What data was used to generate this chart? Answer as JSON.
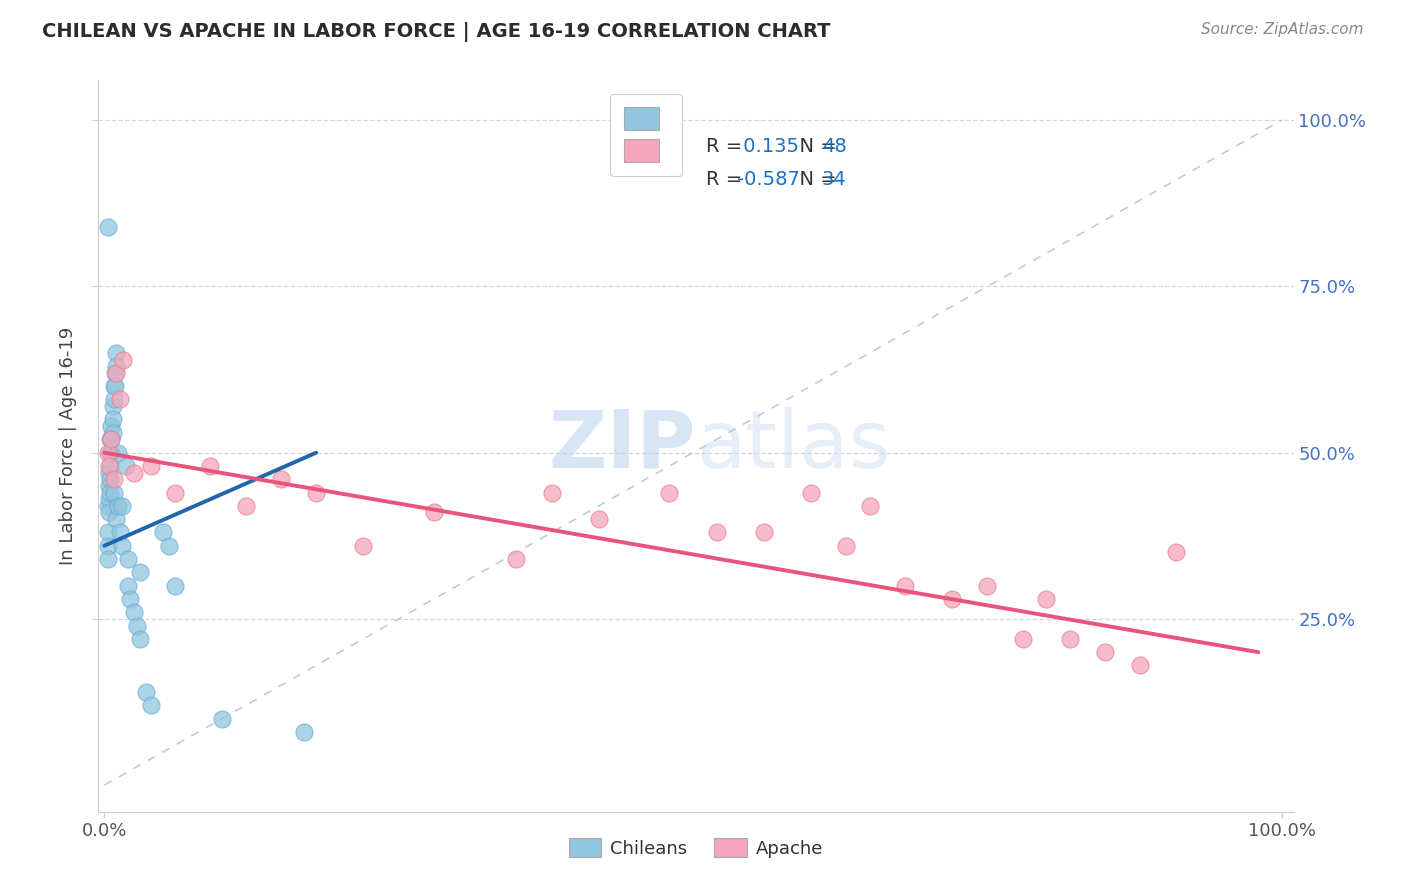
{
  "title": "CHILEAN VS APACHE IN LABOR FORCE | AGE 16-19 CORRELATION CHART",
  "source": "Source: ZipAtlas.com",
  "ylabel": "In Labor Force | Age 16-19",
  "chilean_R": 0.135,
  "chilean_N": 48,
  "apache_R": -0.587,
  "apache_N": 34,
  "chilean_color": "#92c5de",
  "apache_color": "#f4a6bd",
  "chilean_edge_color": "#6aaed6",
  "apache_edge_color": "#f08080",
  "chilean_line_color": "#2166ac",
  "apache_line_color": "#e8547a",
  "diagonal_color": "#b0c4d8",
  "watermark_color": "#ddeeff",
  "right_tick_color": "#4472c4",
  "legend_R_color": "#1a70c8",
  "legend_N_color": "#1a70c8",
  "title_color": "#2c2c2c",
  "source_color": "#888888",
  "grid_color": "#d0d8e4",
  "chilean_x": [
    0.003,
    0.003,
    0.003,
    0.003,
    0.003,
    0.004,
    0.004,
    0.004,
    0.004,
    0.005,
    0.005,
    0.005,
    0.005,
    0.005,
    0.006,
    0.006,
    0.006,
    0.007,
    0.007,
    0.007,
    0.008,
    0.008,
    0.008,
    0.009,
    0.009,
    0.01,
    0.01,
    0.01,
    0.012,
    0.012,
    0.013,
    0.015,
    0.015,
    0.018,
    0.02,
    0.02,
    0.022,
    0.025,
    0.028,
    0.03,
    0.03,
    0.035,
    0.04,
    0.05,
    0.055,
    0.06,
    0.1,
    0.17
  ],
  "chilean_y": [
    0.84,
    0.42,
    0.38,
    0.36,
    0.34,
    0.47,
    0.45,
    0.43,
    0.41,
    0.52,
    0.5,
    0.48,
    0.46,
    0.44,
    0.54,
    0.52,
    0.5,
    0.57,
    0.55,
    0.53,
    0.6,
    0.58,
    0.44,
    0.62,
    0.6,
    0.65,
    0.63,
    0.4,
    0.5,
    0.42,
    0.38,
    0.36,
    0.42,
    0.48,
    0.34,
    0.3,
    0.28,
    0.26,
    0.24,
    0.22,
    0.32,
    0.14,
    0.12,
    0.38,
    0.36,
    0.3,
    0.1,
    0.08
  ],
  "apache_x": [
    0.003,
    0.004,
    0.006,
    0.008,
    0.01,
    0.013,
    0.016,
    0.025,
    0.04,
    0.06,
    0.09,
    0.12,
    0.15,
    0.18,
    0.22,
    0.28,
    0.35,
    0.38,
    0.42,
    0.48,
    0.52,
    0.56,
    0.6,
    0.63,
    0.65,
    0.68,
    0.72,
    0.75,
    0.78,
    0.8,
    0.82,
    0.85,
    0.88,
    0.91
  ],
  "apache_y": [
    0.5,
    0.48,
    0.52,
    0.46,
    0.62,
    0.58,
    0.64,
    0.47,
    0.48,
    0.44,
    0.48,
    0.42,
    0.46,
    0.44,
    0.36,
    0.41,
    0.34,
    0.44,
    0.4,
    0.44,
    0.38,
    0.38,
    0.44,
    0.36,
    0.42,
    0.3,
    0.28,
    0.3,
    0.22,
    0.28,
    0.22,
    0.2,
    0.18,
    0.35
  ],
  "chilean_trend_x": [
    0.0,
    0.18
  ],
  "chilean_trend_y": [
    0.36,
    0.5
  ],
  "apache_trend_x": [
    0.0,
    0.98
  ],
  "apache_trend_y": [
    0.5,
    0.2
  ],
  "xlim": [
    -0.005,
    1.01
  ],
  "ylim": [
    -0.04,
    1.06
  ],
  "grid_yticks": [
    0.25,
    0.5,
    0.75,
    1.0
  ]
}
